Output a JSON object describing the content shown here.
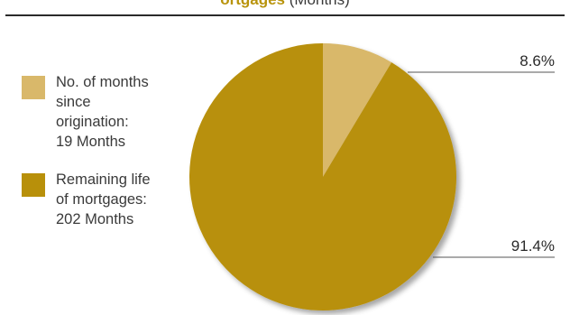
{
  "title_fragment": {
    "highlight": "ortgages",
    "rest": " (Months)"
  },
  "legend": [
    {
      "lines": [
        "No. of months",
        "since",
        "origination:",
        "19 Months"
      ]
    },
    {
      "lines": [
        "Remaining life",
        "of mortgages:",
        "202 Months"
      ]
    }
  ],
  "chart_data": {
    "type": "pie",
    "title": "",
    "slices": [
      {
        "label": "No. of months since origination: 19 Months",
        "value": 8.6,
        "value_label": "8.6%",
        "color": "#d9b86a"
      },
      {
        "label": "Remaining life of mortgages: 202 Months",
        "value": 91.4,
        "value_label": "91.4%",
        "color": "#b8900a"
      }
    ],
    "legend_position": "left"
  }
}
